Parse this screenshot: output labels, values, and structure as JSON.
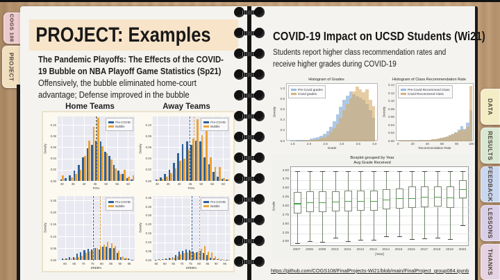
{
  "left_page": {
    "tabs": [
      {
        "label": "COGS 108",
        "color": "#eccace"
      },
      {
        "label": "PROJECT",
        "color": "#f2dfc0"
      }
    ],
    "banner_title": "PROJECT: Examples",
    "banner_bg": "#f8e4c9",
    "heading_bold": "The Pandemic Playoffs: The Effects of the COVID-19 Bubble on NBA Playoff Game Statistics (Sp21)",
    "heading_normal": "Offensively, the bubble eliminated home-court advantage; Defense improved in the bubble",
    "column_titles": {
      "home": "Home Teams",
      "away": "Away Teams"
    }
  },
  "right_page": {
    "title": "COVID-19 Impact on UCSD Students (Wi21)",
    "subtitle": "Students report higher class recommendation rates and receive higher grades during COVID-19",
    "link": "https://github.com/COGS108/FinalProjects-Wi21/blob/main/FinalProject_group084.ipynb",
    "tabs": [
      {
        "label": "DATA",
        "color": "#f3ecc5"
      },
      {
        "label": "RESULTS",
        "color": "#d9e8d2"
      },
      {
        "label": "FEEDBACK",
        "color": "#c9d7f0"
      },
      {
        "label": "LESSONS",
        "color": "#d9cfe9"
      },
      {
        "label": "THANKS",
        "color": "#e5d3e3"
      }
    ]
  },
  "chart_data": [
    {
      "id": "home_fg",
      "type": "histogram",
      "mode": "paired",
      "title": "",
      "xlabel": "FG%",
      "ylabel": "Density",
      "x_start": 29,
      "x_step": 2,
      "xlim": [
        28,
        63
      ],
      "xticks": [
        "30",
        "35",
        "40",
        "45",
        "50",
        "55",
        "60"
      ],
      "yticks": [
        "0.00",
        "0.02",
        "0.04",
        "0.06",
        "0.08",
        "0.10"
      ],
      "ymax": 0.115,
      "grid": true,
      "plot_bg": "#e9e9f1",
      "legend_pos": "tr",
      "series": [
        {
          "name": "Pre-COVID",
          "color": "#2e6095",
          "swatch": "#2e6095",
          "values": [
            0.002,
            0.005,
            0.01,
            0.018,
            0.028,
            0.042,
            0.058,
            0.064,
            0.072,
            0.07,
            0.052,
            0.044,
            0.028,
            0.018,
            0.012,
            0.005,
            0.002
          ]
        },
        {
          "name": "Bubble",
          "color": "#eaa338",
          "swatch": "#eaa338",
          "values": [
            0.01,
            0.0,
            0.006,
            0.012,
            0.02,
            0.044,
            0.072,
            0.096,
            0.112,
            0.062,
            0.05,
            0.038,
            0.022,
            0.012,
            0.02,
            0.008,
            0.01
          ]
        }
      ],
      "vlines": [
        {
          "x": 45.2,
          "color": "#2e6095"
        },
        {
          "x": 45.8,
          "color": "#eaa338"
        }
      ]
    },
    {
      "id": "away_fg",
      "type": "histogram",
      "mode": "paired",
      "title": "",
      "xlabel": "FG%",
      "ylabel": "Density",
      "x_start": 29,
      "x_step": 2,
      "xlim": [
        28,
        63
      ],
      "xticks": [
        "30",
        "35",
        "40",
        "45",
        "50",
        "55",
        "60"
      ],
      "yticks": [
        "0.00",
        "0.02",
        "0.04",
        "0.06",
        "0.08",
        "0.10"
      ],
      "ymax": 0.115,
      "grid": true,
      "plot_bg": "#e9e9f1",
      "legend_pos": "tr",
      "series": [
        {
          "name": "Pre-COVID",
          "color": "#2e6095",
          "swatch": "#2e6095",
          "values": [
            0.003,
            0.006,
            0.012,
            0.02,
            0.032,
            0.05,
            0.066,
            0.07,
            0.064,
            0.072,
            0.07,
            0.042,
            0.03,
            0.016,
            0.008,
            0.004,
            0.002
          ]
        },
        {
          "name": "Bubble",
          "color": "#eaa338",
          "swatch": "#eaa338",
          "values": [
            0.002,
            0.004,
            0.008,
            0.014,
            0.022,
            0.036,
            0.04,
            0.056,
            0.076,
            0.11,
            0.082,
            0.09,
            0.042,
            0.025,
            0.025,
            0.005,
            0.002
          ]
        }
      ],
      "vlines": [
        {
          "x": 44.8,
          "color": "#2e6095"
        },
        {
          "x": 46.5,
          "color": "#eaa338"
        }
      ]
    },
    {
      "id": "home_dreb",
      "type": "histogram",
      "mode": "paired",
      "title": "",
      "xlabel": "DREB%",
      "ylabel": "Density",
      "x_start": 58,
      "x_step": 2,
      "xlim": [
        56,
        98
      ],
      "xticks": [
        "60",
        "65",
        "70",
        "75",
        "80",
        "85",
        "90",
        "95"
      ],
      "yticks": [
        "0.00",
        "0.05",
        "0.10",
        "0.15",
        "0.20",
        "0.25"
      ],
      "ymax": 0.27,
      "grid": true,
      "plot_bg": "#e9e9f1",
      "legend_pos": "tr",
      "series": [
        {
          "name": "Pre-COVID",
          "color": "#2e6095",
          "swatch": "#2e6095",
          "values": [
            0.008,
            0.006,
            0.012,
            0.014,
            0.028,
            0.032,
            0.042,
            0.048,
            0.046,
            0.05,
            0.044,
            0.058,
            0.056,
            0.052,
            0.05,
            0.03,
            0.014,
            0.008,
            0.006,
            0.002
          ]
        },
        {
          "name": "Bubble",
          "color": "#eaa338",
          "swatch": "#eaa338",
          "values": [
            0.004,
            0.008,
            0.006,
            0.01,
            0.014,
            0.02,
            0.03,
            0.036,
            0.042,
            0.05,
            0.056,
            0.066,
            0.076,
            0.07,
            0.06,
            0.04,
            0.016,
            0.01,
            0.004,
            0.002
          ]
        }
      ],
      "vlines": [
        {
          "x": 75.2,
          "color": "#2e6095"
        },
        {
          "x": 79.0,
          "color": "#eaa338"
        }
      ]
    },
    {
      "id": "away_dreb",
      "type": "histogram",
      "mode": "paired",
      "title": "",
      "xlabel": "DREB%",
      "ylabel": "Density",
      "x_start": 54,
      "x_step": 2,
      "xlim": [
        53,
        98
      ],
      "xticks": [
        "55",
        "60",
        "65",
        "70",
        "75",
        "80",
        "85",
        "90",
        "95"
      ],
      "yticks": [
        "0.00",
        "0.05",
        "0.10",
        "0.15",
        "0.20",
        "0.25",
        "0.30",
        "0.35"
      ],
      "ymax": 0.36,
      "grid": true,
      "plot_bg": "#e9e9f1",
      "legend_pos": "tr",
      "series": [
        {
          "name": "Pre-COVID",
          "color": "#2e6095",
          "swatch": "#2e6095",
          "values": [
            0.002,
            0.004,
            0.006,
            0.008,
            0.012,
            0.016,
            0.03,
            0.048,
            0.052,
            0.06,
            0.055,
            0.05,
            0.046,
            0.052,
            0.04,
            0.03,
            0.012,
            0.008,
            0.004,
            0.002,
            0.001,
            0.001
          ]
        },
        {
          "name": "Bubble",
          "color": "#eaa338",
          "swatch": "#eaa338",
          "values": [
            0.001,
            0.002,
            0.004,
            0.006,
            0.01,
            0.014,
            0.02,
            0.034,
            0.04,
            0.046,
            0.05,
            0.042,
            0.05,
            0.064,
            0.08,
            0.05,
            0.046,
            0.02,
            0.008,
            0.004,
            0.002,
            0.001
          ]
        }
      ],
      "vlines": [
        {
          "x": 75.5,
          "color": "#2e6095"
        },
        {
          "x": 80.0,
          "color": "#eaa338"
        }
      ]
    },
    {
      "id": "grades_hist",
      "type": "histogram",
      "mode": "overlap",
      "title": "Histogram of Grades",
      "xlabel": "Grade",
      "ylabel": "Density",
      "x_start": 1.4,
      "x_step": 0.1,
      "xlim": [
        1.3,
        4.1
      ],
      "xticks": [
        "1.5",
        "2.0",
        "2.5",
        "3.0",
        "3.5",
        "4.0"
      ],
      "yticks": [
        "0.0",
        "0.2",
        "0.4",
        "0.6",
        "0.8",
        "1.0"
      ],
      "ymax": 1.1,
      "grid": false,
      "plot_bg": "#ffffff",
      "legend_pos": "tl",
      "series": [
        {
          "name": "Pre-Covid grades",
          "color": "rgba(110,155,205,0.55)",
          "swatch": "#9dbbdb",
          "values": [
            0.01,
            0.01,
            0.02,
            0.02,
            0.03,
            0.03,
            0.05,
            0.06,
            0.08,
            0.1,
            0.14,
            0.2,
            0.28,
            0.38,
            0.52,
            0.66,
            0.8,
            0.88,
            0.95,
            0.9,
            0.86,
            0.84,
            0.8,
            0.72,
            0.6,
            0.45
          ]
        },
        {
          "name": "Covid grades",
          "color": "rgba(214,170,100,0.60)",
          "swatch": "#d6b37c",
          "values": [
            0.0,
            0.0,
            0.01,
            0.01,
            0.01,
            0.02,
            0.02,
            0.03,
            0.04,
            0.06,
            0.08,
            0.12,
            0.18,
            0.25,
            0.33,
            0.45,
            0.6,
            0.72,
            0.82,
            0.95,
            1.05,
            1.0,
            0.94,
            1.0,
            0.8,
            0.68
          ]
        }
      ],
      "vlines": []
    },
    {
      "id": "rec_hist",
      "type": "histogram",
      "mode": "overlap",
      "title": "Histogram of Class Recommendation Rate",
      "xlabel": "Recommendation Rate",
      "ylabel": "Density",
      "x_start": 0,
      "x_step": 4,
      "xlim": [
        -3,
        103
      ],
      "xticks": [
        "0",
        "20",
        "40",
        "60",
        "80",
        "100"
      ],
      "yticks": [
        "0.00",
        "0.02",
        "0.04",
        "0.06",
        "0.08",
        "0.10",
        "0.12",
        "0.14"
      ],
      "ymax": 0.145,
      "grid": false,
      "plot_bg": "#ffffff",
      "legend_pos": "tl",
      "series": [
        {
          "name": "Pre-Covid Recommend Class",
          "color": "rgba(110,155,205,0.55)",
          "swatch": "#9dbbdb",
          "values": [
            0.001,
            0.001,
            0.001,
            0.001,
            0.002,
            0.002,
            0.002,
            0.003,
            0.003,
            0.004,
            0.004,
            0.005,
            0.006,
            0.007,
            0.009,
            0.011,
            0.013,
            0.016,
            0.019,
            0.023,
            0.03,
            0.038,
            0.031,
            0.048,
            0.078
          ]
        },
        {
          "name": "Covid Recommend Class",
          "color": "rgba(214,170,100,0.60)",
          "swatch": "#d6b37c",
          "values": [
            0.001,
            0.001,
            0.001,
            0.001,
            0.001,
            0.002,
            0.002,
            0.002,
            0.003,
            0.003,
            0.004,
            0.005,
            0.006,
            0.007,
            0.008,
            0.01,
            0.013,
            0.015,
            0.018,
            0.022,
            0.026,
            0.03,
            0.028,
            0.036,
            0.14
          ]
        }
      ],
      "vlines": []
    },
    {
      "id": "grades_box",
      "type": "boxplot",
      "title_lines": [
        "Boxplot grouped by Year",
        "Avg Grade Received"
      ],
      "xlabel": "[Year]",
      "ylabel": "Grade",
      "categories": [
        "2007",
        "2008",
        "2009",
        "2010",
        "2011",
        "2012",
        "2013",
        "2014",
        "2015",
        "2016",
        "2017",
        "2018",
        "2019",
        "2020"
      ],
      "ylim": [
        1.88,
        4.12
      ],
      "yticks": [
        "2.00",
        "2.25",
        "2.50",
        "2.75",
        "3.00",
        "3.25",
        "3.50",
        "3.75",
        "4.00"
      ],
      "stats": [
        [
          1.97,
          2.82,
          3.1,
          3.42,
          4.0
        ],
        [
          2.03,
          2.86,
          3.13,
          3.43,
          4.0
        ],
        [
          2.01,
          2.86,
          3.13,
          3.43,
          4.0
        ],
        [
          2.14,
          2.88,
          3.15,
          3.43,
          4.0
        ],
        [
          2.03,
          2.87,
          3.17,
          3.46,
          4.0
        ],
        [
          2.08,
          2.89,
          3.16,
          3.46,
          4.0
        ],
        [
          2.07,
          2.9,
          3.17,
          3.46,
          4.0
        ],
        [
          2.18,
          2.93,
          3.21,
          3.5,
          4.0
        ],
        [
          2.17,
          2.95,
          3.24,
          3.52,
          4.0
        ],
        [
          2.1,
          2.98,
          3.25,
          3.58,
          4.0
        ],
        [
          2.12,
          2.99,
          3.29,
          3.58,
          4.0
        ],
        [
          2.13,
          3.0,
          3.29,
          3.58,
          4.0
        ],
        [
          2.1,
          2.98,
          3.27,
          3.58,
          4.0
        ],
        [
          2.48,
          3.25,
          3.5,
          3.75,
          4.0
        ]
      ],
      "box_color": "#76856f",
      "median_color": "#46a046"
    }
  ]
}
